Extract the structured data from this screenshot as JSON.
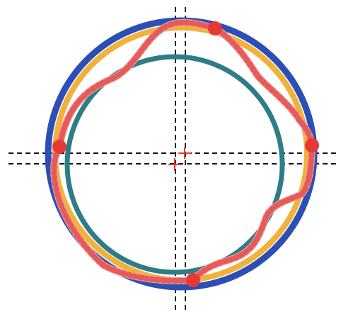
{
  "diagram": {
    "shapes": [
      {
        "name": "outer-circle",
        "kind": "circle",
        "color": "#2b4fb5"
      },
      {
        "name": "yellow-circle",
        "kind": "circle",
        "color": "#f2b13b"
      },
      {
        "name": "teal-circle",
        "kind": "circle",
        "color": "#2e7d86"
      },
      {
        "name": "red-dotted-contour",
        "kind": "closed-curve",
        "color": "#e85a5a"
      }
    ],
    "markers": [
      {
        "name": "point-top",
        "color": "#e53935"
      },
      {
        "name": "point-left",
        "color": "#e53935"
      },
      {
        "name": "point-right",
        "color": "#e53935"
      },
      {
        "name": "point-bottom",
        "color": "#e53935"
      }
    ],
    "center_marks": [
      {
        "name": "center-cross-a",
        "color": "#e53935"
      },
      {
        "name": "center-cross-b",
        "color": "#e53935"
      }
    ],
    "guide_lines": {
      "style": "dashed",
      "color": "#111111",
      "count": 4
    }
  }
}
